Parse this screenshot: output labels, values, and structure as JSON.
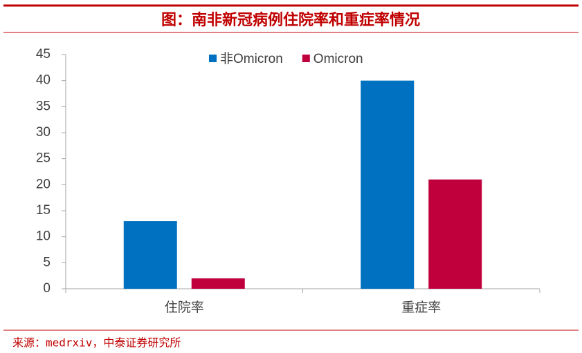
{
  "chart_data": {
    "type": "bar",
    "title": "图：南非新冠病例住院率和重症率情况",
    "source": "来源：medrxiv，中泰证券研究所",
    "categories": [
      "住院率",
      "重症率"
    ],
    "series": [
      {
        "name": "非Omicron",
        "color": "#0070c0",
        "values": [
          13,
          40
        ]
      },
      {
        "name": "Omicron",
        "color": "#c0003c",
        "values": [
          2,
          21
        ]
      }
    ],
    "ylim": [
      0,
      45
    ],
    "yticks": [
      0,
      5,
      10,
      15,
      20,
      25,
      30,
      35,
      40,
      45
    ],
    "grid": false,
    "legend": "top"
  }
}
